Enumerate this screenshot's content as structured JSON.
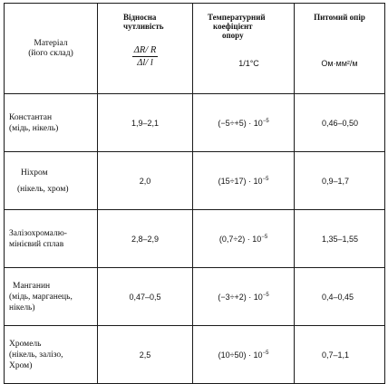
{
  "header": {
    "material_line1": "Матеріал",
    "material_line2": "(його склад)",
    "sensitivity_line1": "Відносна",
    "sensitivity_line2": "чутливість",
    "sensitivity_formula_num": "ΔR/ R",
    "sensitivity_formula_den": "Δl/ l",
    "tcr_line1": "Температурний",
    "tcr_line2": "коефіцієнт",
    "tcr_line3": "опору",
    "tcr_unit": "1/1°С",
    "resistivity_title": "Питомий опір",
    "resistivity_unit": "Ом·мм²/м"
  },
  "rows": [
    {
      "material_line1": "Константан",
      "material_line2": "(мідь, нікель)",
      "material_line3": "",
      "sensitivity": "1,9–2,1",
      "tcr_base": "(−5÷+5) · 10",
      "tcr_exp": "−5",
      "resistivity": "0,46–0,50"
    },
    {
      "material_line1": "Ніхром",
      "material_line2": "(нікель, хром)",
      "material_line3": "",
      "sensitivity": "2,0",
      "tcr_base": "(15÷17) · 10",
      "tcr_exp": "−5",
      "resistivity": "0,9–1,7"
    },
    {
      "material_line1": "Залізохромалю-",
      "material_line2": "мінієвий сплав",
      "material_line3": "",
      "sensitivity": "2,8–2,9",
      "tcr_base": "(0,7÷2) · 10",
      "tcr_exp": "−5",
      "resistivity": "1,35–1,55"
    },
    {
      "material_line1": "Манганин",
      "material_line2": "(мідь, марганець,",
      "material_line3": "нікель)",
      "sensitivity": "0,47–0,5",
      "tcr_base": "(−3÷+2) · 10",
      "tcr_exp": "−5",
      "resistivity": "0,4–0,45"
    },
    {
      "material_line1": "Хромель",
      "material_line2": "(нікель, залізо,",
      "material_line3": "Хром)",
      "sensitivity": "2,5",
      "tcr_base": "(10÷50) · 10",
      "tcr_exp": "−5",
      "resistivity": "0,7–1,1"
    }
  ]
}
